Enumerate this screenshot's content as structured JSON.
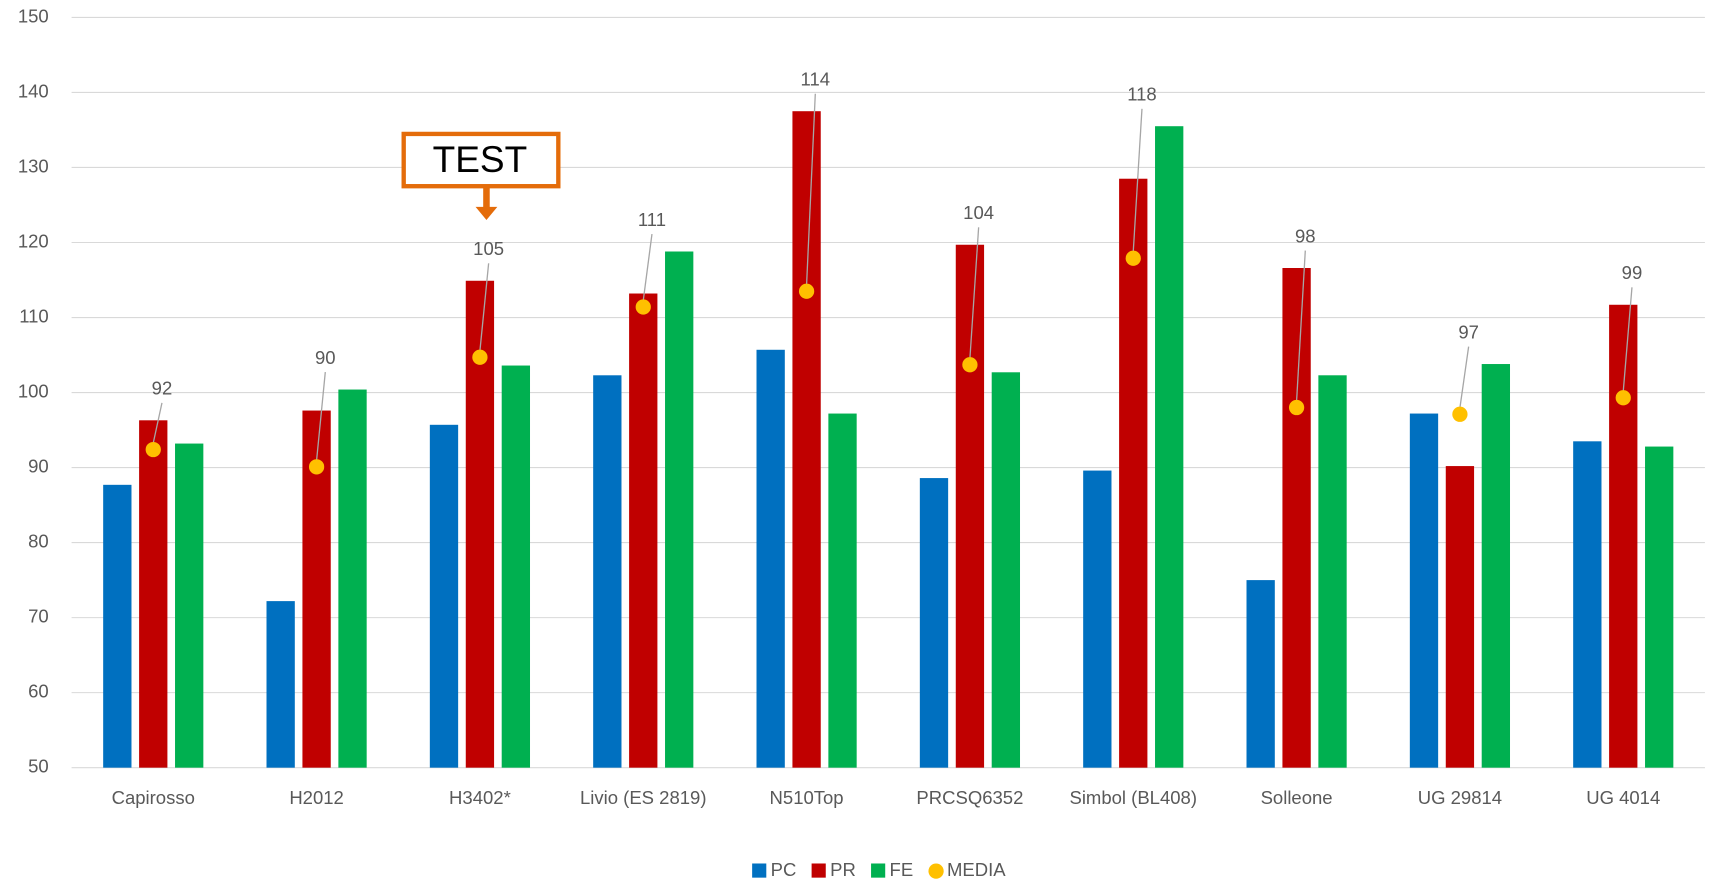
{
  "chart_data": {
    "type": "bar",
    "categories": [
      "Capirosso",
      "H2012",
      "H3402*",
      "Livio (ES 2819)",
      "N510Top",
      "PRCSQ6352",
      "Simbol (BL408)",
      "Solleone",
      "UG 29814",
      "UG 4014"
    ],
    "series": [
      {
        "name": "PC",
        "color": "#0070c0",
        "values": [
          87.7,
          72.2,
          95.7,
          102.3,
          105.7,
          88.6,
          89.6,
          75,
          97.2,
          93.5
        ]
      },
      {
        "name": "PR",
        "color": "#c00000",
        "values": [
          96.3,
          97.6,
          114.9,
          113.2,
          137.5,
          119.7,
          128.5,
          116.6,
          90.2,
          111.7
        ]
      },
      {
        "name": "FE",
        "color": "#00b050",
        "values": [
          93.2,
          100.4,
          103.6,
          118.8,
          97.2,
          102.7,
          135.5,
          102.3,
          103.8,
          92.8
        ]
      },
      {
        "name": "MEDIA",
        "color": "#ffc000",
        "type": "scatter",
        "values": [
          92.4,
          90.1,
          104.7,
          111.4,
          113.5,
          103.7,
          117.9,
          98,
          97.1,
          99.3
        ],
        "value_labels": [
          "92",
          "90",
          "105",
          "111",
          "114",
          "104",
          "118",
          "98",
          "97",
          "99"
        ]
      }
    ],
    "annotations": [
      {
        "text": "TEST",
        "category": 2
      }
    ],
    "ylim": [
      50,
      150
    ],
    "yticks": [
      50,
      60,
      70,
      80,
      90,
      100,
      110,
      120,
      130,
      140,
      150
    ],
    "grid": true,
    "legend": "bottom"
  }
}
